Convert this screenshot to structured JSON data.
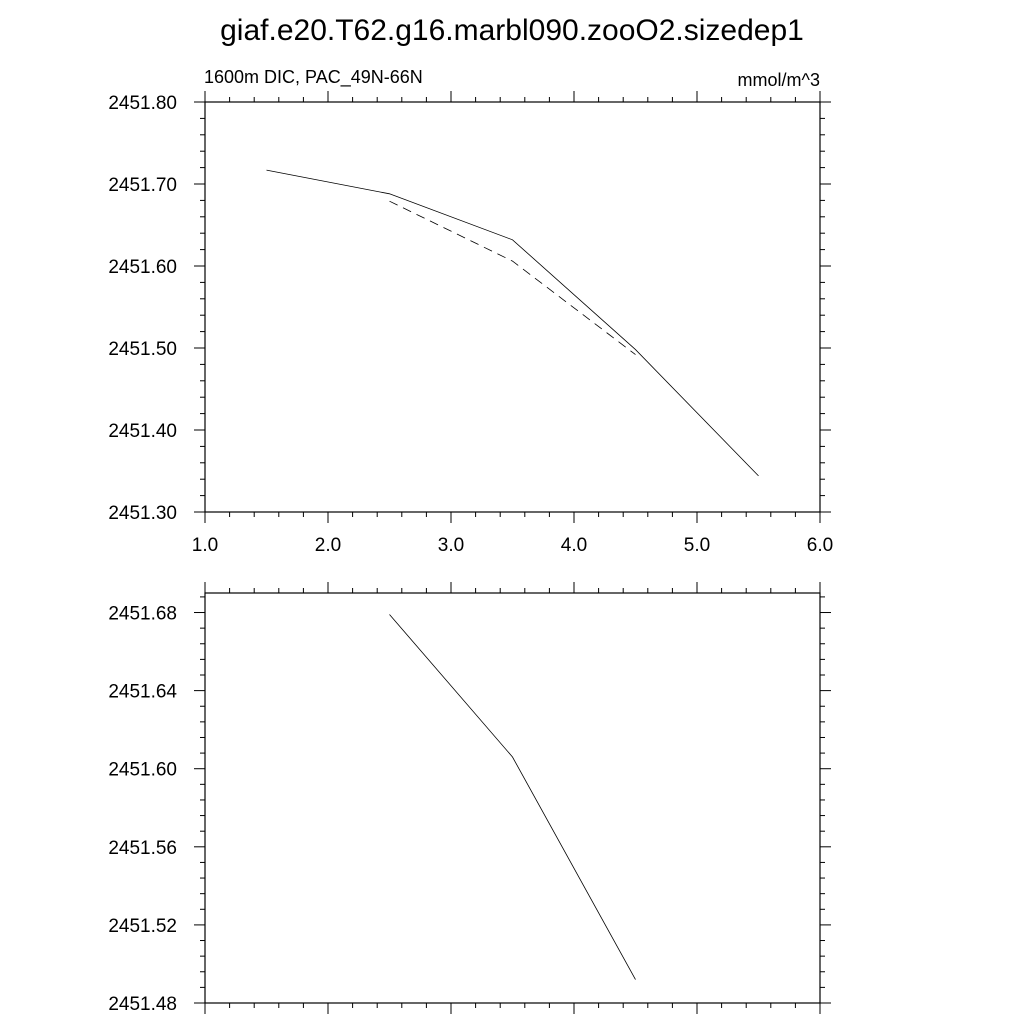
{
  "title": "giaf.e20.T62.g16.marbl090.zooO2.sizedep1",
  "chart_data": [
    {
      "type": "line",
      "left_label": "1600m DIC, PAC_49N-66N",
      "right_label": "mmol/m^3",
      "xlim": [
        1.0,
        6.0
      ],
      "ylim": [
        2451.3,
        2451.8
      ],
      "xticks": [
        1.0,
        2.0,
        3.0,
        4.0,
        5.0,
        6.0
      ],
      "xtick_labels": [
        "1.0",
        "2.0",
        "3.0",
        "4.0",
        "5.0",
        "6.0"
      ],
      "yticks": [
        2451.3,
        2451.4,
        2451.5,
        2451.6,
        2451.7,
        2451.8
      ],
      "ytick_labels": [
        "2451.30",
        "2451.40",
        "2451.50",
        "2451.60",
        "2451.70",
        "2451.80"
      ],
      "series": [
        {
          "style": "solid",
          "x": [
            1.5,
            2.5,
            3.5,
            4.5,
            5.5
          ],
          "y": [
            2451.717,
            2451.688,
            2451.632,
            2451.498,
            2451.344
          ]
        },
        {
          "style": "dashed",
          "x": [
            2.5,
            3.5,
            4.5
          ],
          "y": [
            2451.679,
            2451.606,
            2451.492
          ]
        }
      ]
    },
    {
      "type": "line",
      "xlim": [
        1.0,
        6.0
      ],
      "ylim": [
        2451.48,
        2451.69
      ],
      "xticks": [
        1.0,
        2.0,
        3.0,
        4.0,
        5.0,
        6.0
      ],
      "yticks": [
        2451.48,
        2451.52,
        2451.56,
        2451.6,
        2451.64,
        2451.68
      ],
      "ytick_labels": [
        "2451.48",
        "2451.52",
        "2451.56",
        "2451.60",
        "2451.64",
        "2451.68"
      ],
      "series": [
        {
          "style": "solid",
          "x": [
            2.5,
            3.5,
            4.5
          ],
          "y": [
            2451.679,
            2451.606,
            2451.492
          ]
        }
      ]
    }
  ]
}
